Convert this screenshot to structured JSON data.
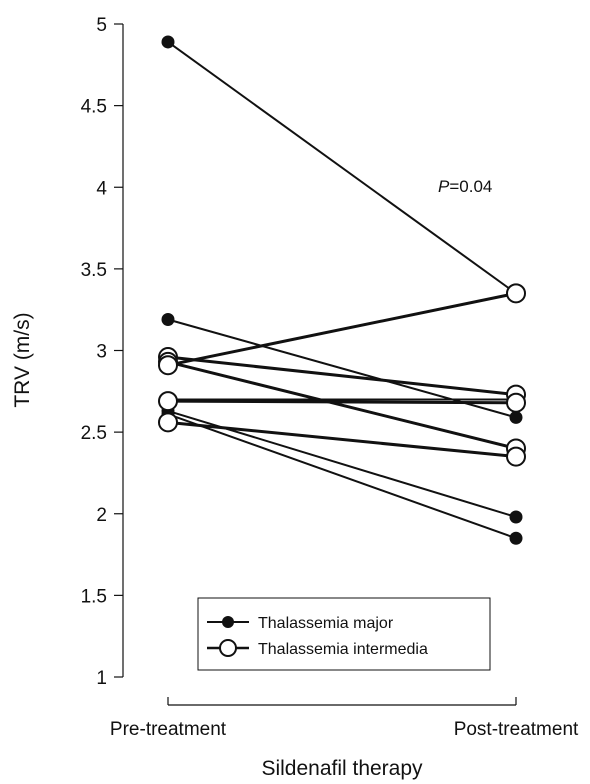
{
  "chart_data": {
    "type": "line",
    "title": "",
    "xlabel": "Sildenafil therapy",
    "ylabel": "TRV (m/s)",
    "categories": [
      "Pre-treatment",
      "Post-treatment"
    ],
    "ylim": [
      1,
      5
    ],
    "yticks": [
      "1",
      "1.5",
      "2",
      "2.5",
      "3",
      "3.5",
      "4",
      "4.5",
      "5"
    ],
    "annotation": {
      "italic": "P",
      "text": "=0.04"
    },
    "legend": {
      "placement": "bottom-center",
      "entries": [
        "Thalassemia major",
        "Thalassemia intermedia"
      ]
    },
    "series": [
      {
        "name": "Thalassemia major",
        "marker": "filled",
        "lines": [
          [
            4.89,
            3.35
          ],
          [
            3.19,
            2.59
          ],
          [
            2.7,
            2.7
          ],
          [
            2.63,
            1.98
          ],
          [
            2.61,
            1.85
          ]
        ]
      },
      {
        "name": "Thalassemia intermedia",
        "marker": "open",
        "lines": [
          [
            2.96,
            2.73
          ],
          [
            2.93,
            2.4
          ],
          [
            2.91,
            3.35
          ],
          [
            2.69,
            2.68
          ],
          [
            2.56,
            2.35
          ]
        ]
      }
    ]
  }
}
